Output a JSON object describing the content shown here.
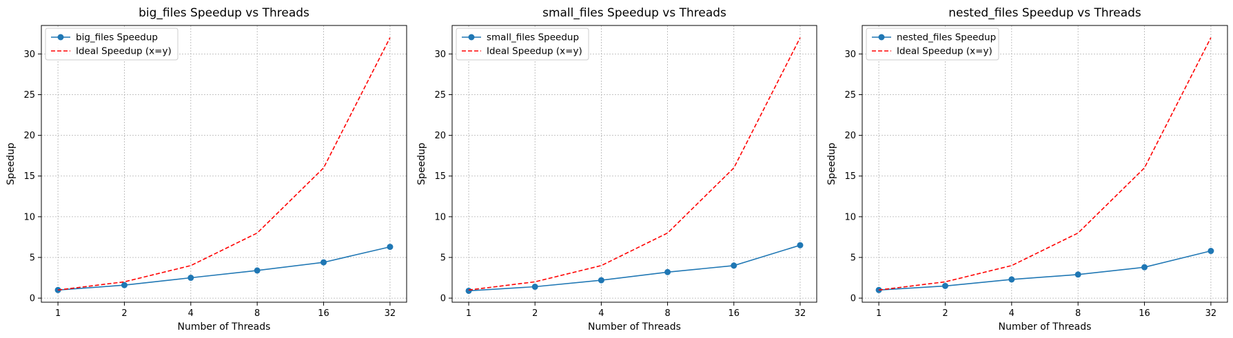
{
  "figure": {
    "background": "#ffffff"
  },
  "chart_data": [
    {
      "type": "line",
      "title": "big_files Speedup vs Threads",
      "xlabel": "Number of Threads",
      "ylabel": "Speedup",
      "x": [
        1,
        2,
        4,
        8,
        16,
        32
      ],
      "x_scale": "log2",
      "xticks": [
        "1",
        "2",
        "4",
        "8",
        "16",
        "32"
      ],
      "ylim": [
        -0.5,
        33.5
      ],
      "yticks": [
        0,
        5,
        10,
        15,
        20,
        25,
        30
      ],
      "grid": true,
      "legend_position": "upper-left",
      "series": [
        {
          "name": "big_files Speedup",
          "values": [
            1.0,
            1.6,
            2.5,
            3.4,
            4.4,
            6.3
          ],
          "color": "#1f77b4",
          "style": "solid",
          "marker": "circle"
        },
        {
          "name": "Ideal Speedup (x=y)",
          "values": [
            1,
            2,
            4,
            8,
            16,
            32
          ],
          "color": "#ff0000",
          "style": "dashed",
          "marker": "none"
        }
      ]
    },
    {
      "type": "line",
      "title": "small_files Speedup vs Threads",
      "xlabel": "Number of Threads",
      "ylabel": "Speedup",
      "x": [
        1,
        2,
        4,
        8,
        16,
        32
      ],
      "x_scale": "log2",
      "xticks": [
        "1",
        "2",
        "4",
        "8",
        "16",
        "32"
      ],
      "ylim": [
        -0.5,
        33.5
      ],
      "yticks": [
        0,
        5,
        10,
        15,
        20,
        25,
        30
      ],
      "grid": true,
      "legend_position": "upper-left",
      "series": [
        {
          "name": "small_files Speedup",
          "values": [
            0.9,
            1.4,
            2.2,
            3.2,
            4.0,
            6.5
          ],
          "color": "#1f77b4",
          "style": "solid",
          "marker": "circle"
        },
        {
          "name": "Ideal Speedup (x=y)",
          "values": [
            1,
            2,
            4,
            8,
            16,
            32
          ],
          "color": "#ff0000",
          "style": "dashed",
          "marker": "none"
        }
      ]
    },
    {
      "type": "line",
      "title": "nested_files Speedup vs Threads",
      "xlabel": "Number of Threads",
      "ylabel": "Speedup",
      "x": [
        1,
        2,
        4,
        8,
        16,
        32
      ],
      "x_scale": "log2",
      "xticks": [
        "1",
        "2",
        "4",
        "8",
        "16",
        "32"
      ],
      "ylim": [
        -0.5,
        33.5
      ],
      "yticks": [
        0,
        5,
        10,
        15,
        20,
        25,
        30
      ],
      "grid": true,
      "legend_position": "upper-left",
      "series": [
        {
          "name": "nested_files Speedup",
          "values": [
            1.0,
            1.5,
            2.3,
            2.9,
            3.8,
            5.8
          ],
          "color": "#1f77b4",
          "style": "solid",
          "marker": "circle"
        },
        {
          "name": "Ideal Speedup (x=y)",
          "values": [
            1,
            2,
            4,
            8,
            16,
            32
          ],
          "color": "#ff0000",
          "style": "dashed",
          "marker": "none"
        }
      ]
    }
  ]
}
